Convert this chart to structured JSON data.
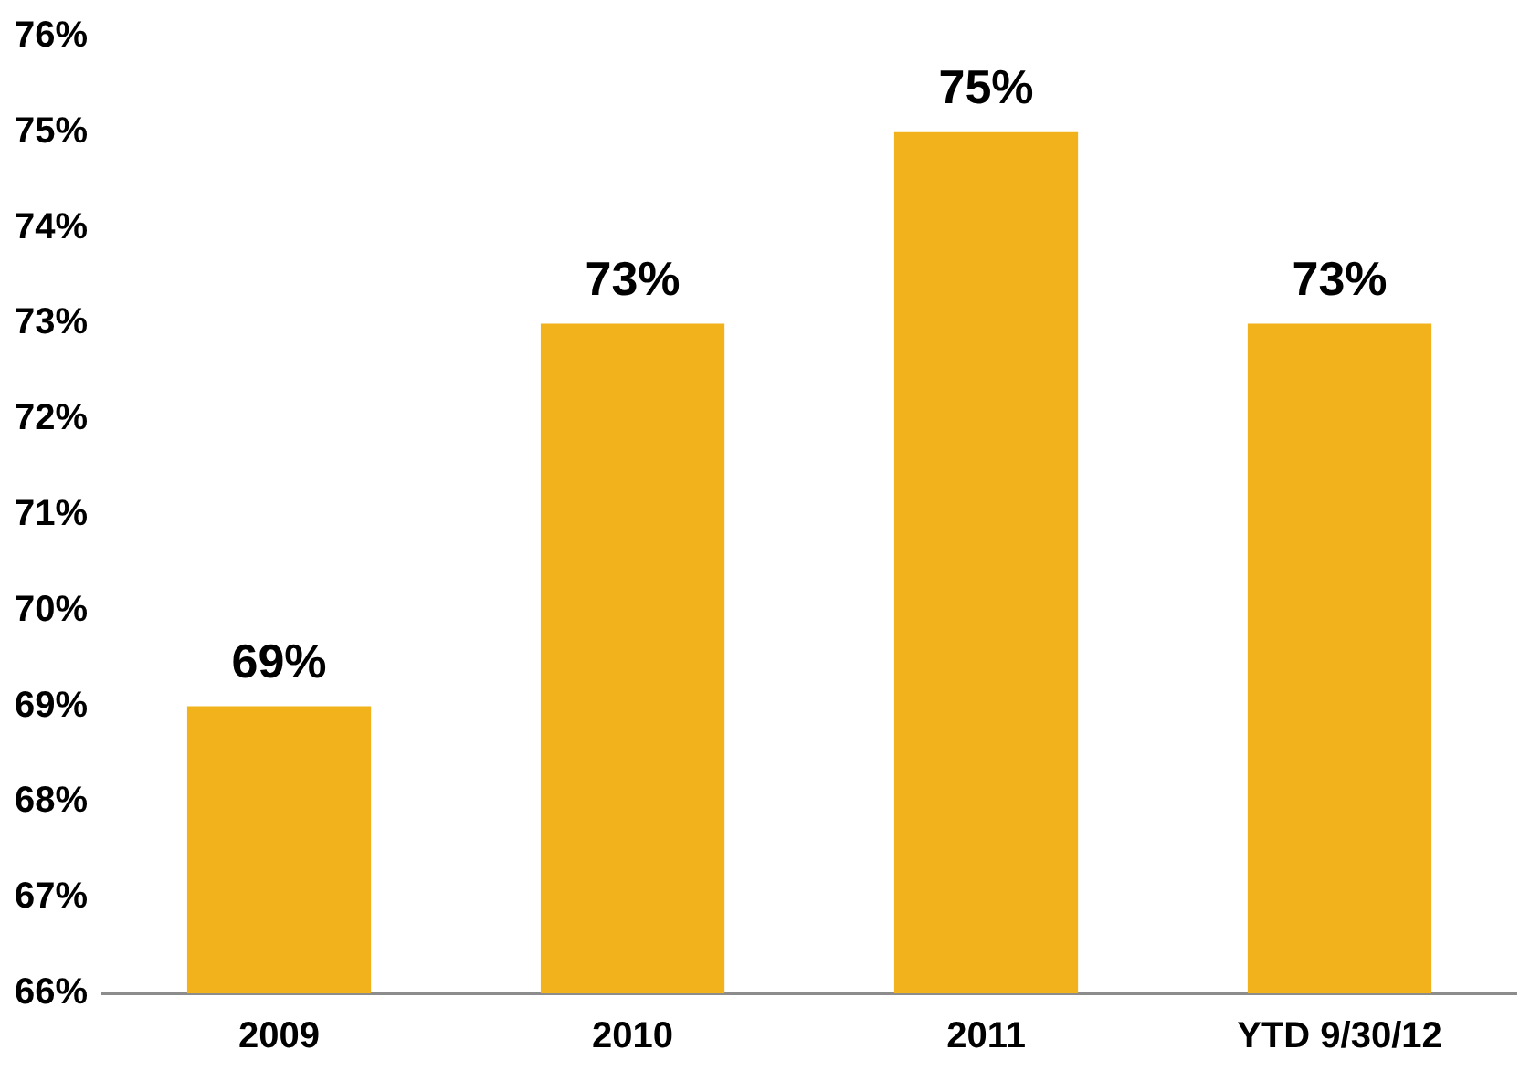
{
  "chart_data": {
    "type": "bar",
    "categories": [
      "2009",
      "2010",
      "2011",
      "YTD 9/30/12"
    ],
    "values": [
      69,
      73,
      75,
      73
    ],
    "color": "#f2b21c",
    "value_labels": [
      "69%",
      "73%",
      "75%",
      "73%"
    ],
    "ylim": [
      66,
      76
    ],
    "yticks": [
      {
        "value": 66,
        "label": "66%"
      },
      {
        "value": 67,
        "label": "67%"
      },
      {
        "value": 68,
        "label": "68%"
      },
      {
        "value": 69,
        "label": "69%"
      },
      {
        "value": 70,
        "label": "70%"
      },
      {
        "value": 71,
        "label": "71%"
      },
      {
        "value": 72,
        "label": "72%"
      },
      {
        "value": 73,
        "label": "73%"
      },
      {
        "value": 74,
        "label": "74%"
      },
      {
        "value": 75,
        "label": "75%"
      },
      {
        "value": 76,
        "label": "76%"
      }
    ],
    "grid": false,
    "legend": false
  }
}
